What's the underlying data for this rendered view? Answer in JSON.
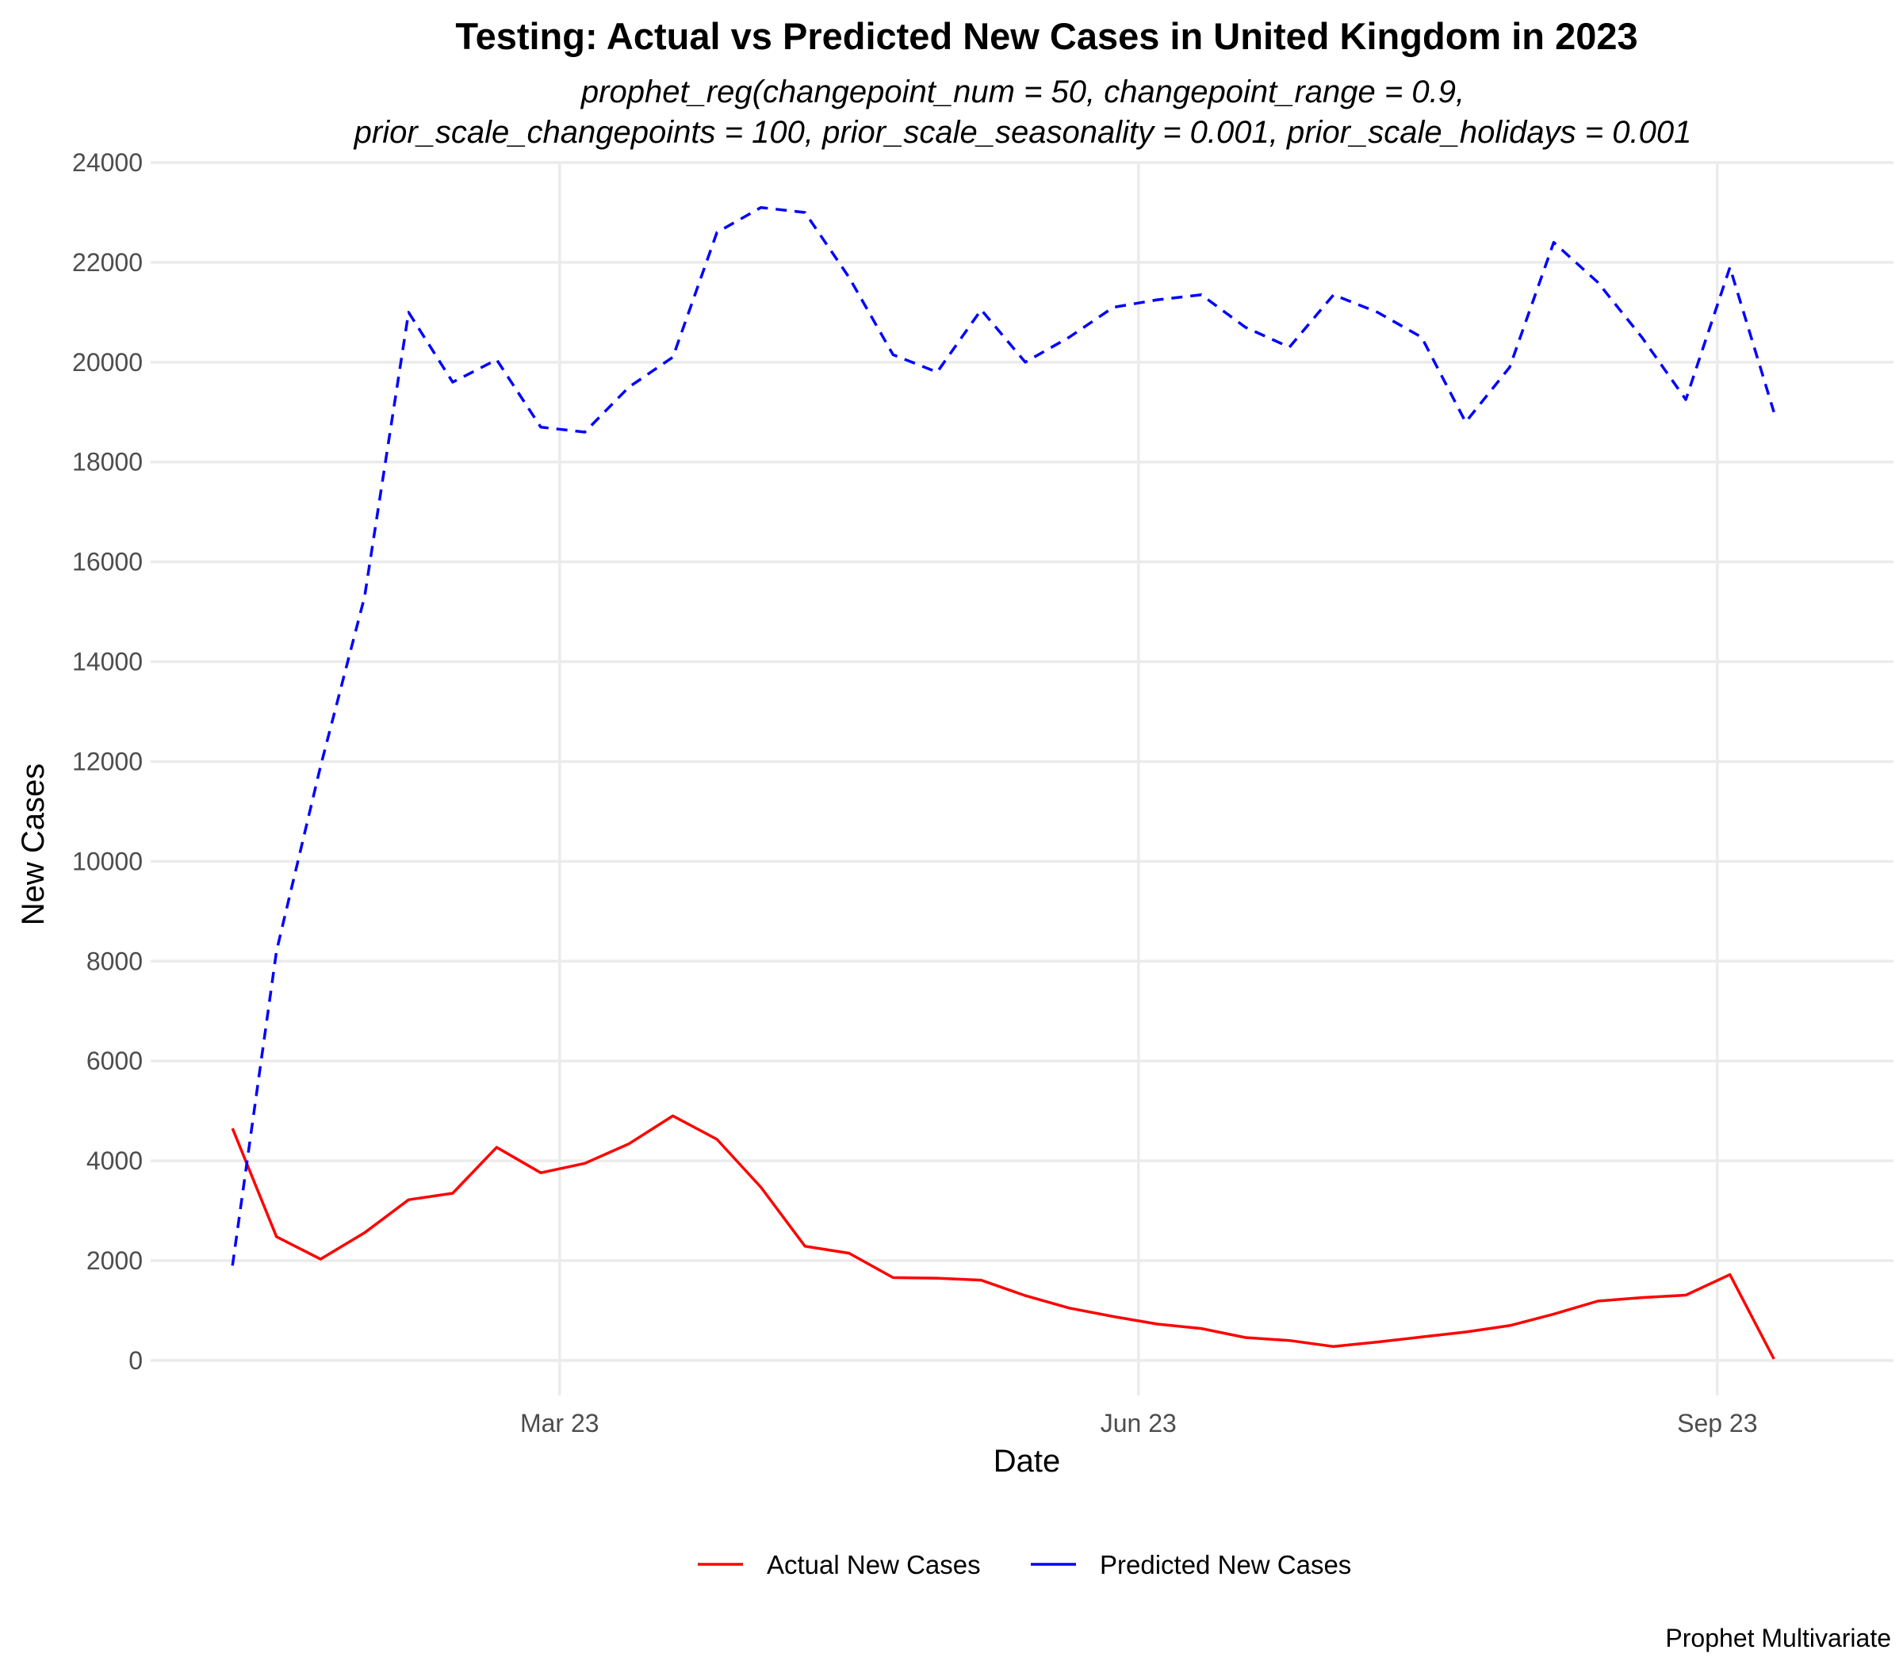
{
  "chart_data": {
    "type": "line",
    "title": "Testing: Actual vs Predicted New Cases in United Kingdom in 2023",
    "subtitle": [
      "prophet_reg(changepoint_num = 50, changepoint_range = 0.9,",
      "prior_scale_changepoints = 100, prior_scale_seasonality = 0.001, prior_scale_holidays = 0.001"
    ],
    "xlabel": "Date",
    "ylabel": "New Cases",
    "caption": "Prophet Multivariate",
    "x_ticks": [
      "Mar 23",
      "Jun 23",
      "Sep 23"
    ],
    "x_tick_dates": [
      "2023-03-01",
      "2023-06-01",
      "2023-09-01"
    ],
    "xlim": [
      "2022-12-26",
      "2023-09-29"
    ],
    "y_ticks": [
      0,
      2000,
      4000,
      6000,
      8000,
      10000,
      12000,
      14000,
      16000,
      18000,
      20000,
      22000,
      24000
    ],
    "ylim": [
      -700,
      24000
    ],
    "grid": true,
    "legend_position": "bottom",
    "x": [
      "2023-01-08",
      "2023-01-15",
      "2023-01-22",
      "2023-01-29",
      "2023-02-05",
      "2023-02-12",
      "2023-02-19",
      "2023-02-26",
      "2023-03-05",
      "2023-03-12",
      "2023-03-19",
      "2023-03-26",
      "2023-04-02",
      "2023-04-09",
      "2023-04-16",
      "2023-04-23",
      "2023-04-30",
      "2023-05-07",
      "2023-05-14",
      "2023-05-21",
      "2023-05-28",
      "2023-06-04",
      "2023-06-11",
      "2023-06-18",
      "2023-06-25",
      "2023-07-02",
      "2023-07-09",
      "2023-07-16",
      "2023-07-23",
      "2023-07-30",
      "2023-08-06",
      "2023-08-13",
      "2023-08-20",
      "2023-08-27",
      "2023-09-03",
      "2023-09-10"
    ],
    "series": [
      {
        "name": "Actual New Cases",
        "color": "#ff0000",
        "dash": "solid",
        "values": [
          4650,
          2480,
          2030,
          2560,
          3220,
          3350,
          4270,
          3760,
          3950,
          4340,
          4900,
          4430,
          3470,
          2290,
          2150,
          1660,
          1650,
          1610,
          1300,
          1050,
          880,
          730,
          640,
          460,
          400,
          280,
          370,
          470,
          570,
          700,
          930,
          1190,
          1260,
          1310,
          1720,
          30
        ]
      },
      {
        "name": "Predicted New Cases",
        "color": "#0000ff",
        "dash": "dashed",
        "values": [
          1900,
          8200,
          11900,
          15300,
          21000,
          19600,
          20050,
          18700,
          18600,
          19500,
          20100,
          22600,
          23100,
          23000,
          21700,
          20150,
          19800,
          21050,
          20000,
          20500,
          21100,
          21250,
          21350,
          20700,
          20300,
          21350,
          21000,
          20500,
          18800,
          19900,
          22400,
          21600,
          20500,
          19250,
          21900,
          19000
        ]
      }
    ]
  }
}
